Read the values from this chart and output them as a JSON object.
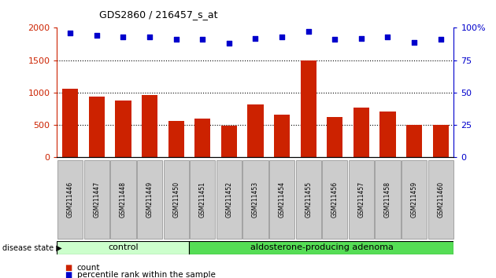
{
  "title": "GDS2860 / 216457_s_at",
  "samples": [
    "GSM211446",
    "GSM211447",
    "GSM211448",
    "GSM211449",
    "GSM211450",
    "GSM211451",
    "GSM211452",
    "GSM211453",
    "GSM211454",
    "GSM211455",
    "GSM211456",
    "GSM211457",
    "GSM211458",
    "GSM211459",
    "GSM211460"
  ],
  "counts": [
    1060,
    940,
    870,
    960,
    560,
    600,
    490,
    810,
    660,
    1500,
    620,
    760,
    710,
    500,
    500
  ],
  "percentiles": [
    96,
    94,
    93,
    93,
    91,
    91,
    88,
    92,
    93,
    97,
    91,
    92,
    93,
    89,
    91
  ],
  "control_count": 5,
  "control_label": "control",
  "adenoma_label": "aldosterone-producing adenoma",
  "disease_state_label": "disease state",
  "bar_color": "#cc2200",
  "dot_color": "#0000cc",
  "ylim_left": [
    0,
    2000
  ],
  "ylim_right": [
    0,
    100
  ],
  "yticks_left": [
    0,
    500,
    1000,
    1500,
    2000
  ],
  "yticks_right": [
    0,
    25,
    50,
    75,
    100
  ],
  "grid_values": [
    500,
    1000,
    1500
  ],
  "legend_count_label": "count",
  "legend_percentile_label": "percentile rank within the sample",
  "control_bg": "#ccffcc",
  "adenoma_bg": "#55dd55",
  "tick_label_bg": "#cccccc",
  "bar_width": 0.6
}
